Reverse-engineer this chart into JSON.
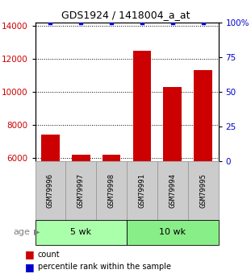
{
  "title": "GDS1924 / 1418004_a_at",
  "samples": [
    "GSM79996",
    "GSM79997",
    "GSM79998",
    "GSM79991",
    "GSM79994",
    "GSM79995"
  ],
  "counts": [
    7400,
    6200,
    6200,
    12500,
    10300,
    11300
  ],
  "percentiles": [
    100,
    100,
    100,
    100,
    100,
    100
  ],
  "groups": [
    {
      "label": "5 wk",
      "samples": [
        0,
        1,
        2
      ],
      "color": "#aaffaa"
    },
    {
      "label": "10 wk",
      "samples": [
        3,
        4,
        5
      ],
      "color": "#88ee88"
    }
  ],
  "ylim_left": [
    5800,
    14200
  ],
  "ylim_right": [
    0,
    100
  ],
  "yticks_left": [
    6000,
    8000,
    10000,
    12000,
    14000
  ],
  "yticks_right": [
    0,
    25,
    50,
    75,
    100
  ],
  "right_labels": [
    "0",
    "25",
    "50",
    "75",
    "100%"
  ],
  "bar_color": "#cc0000",
  "dot_color": "#0000cc",
  "label_color_left": "#cc0000",
  "label_color_right": "#0000cc",
  "sample_box_color": "#cccccc",
  "sample_box_edge": "#999999",
  "group_label": "age",
  "legend_count_label": "count",
  "legend_pct_label": "percentile rank within the sample"
}
